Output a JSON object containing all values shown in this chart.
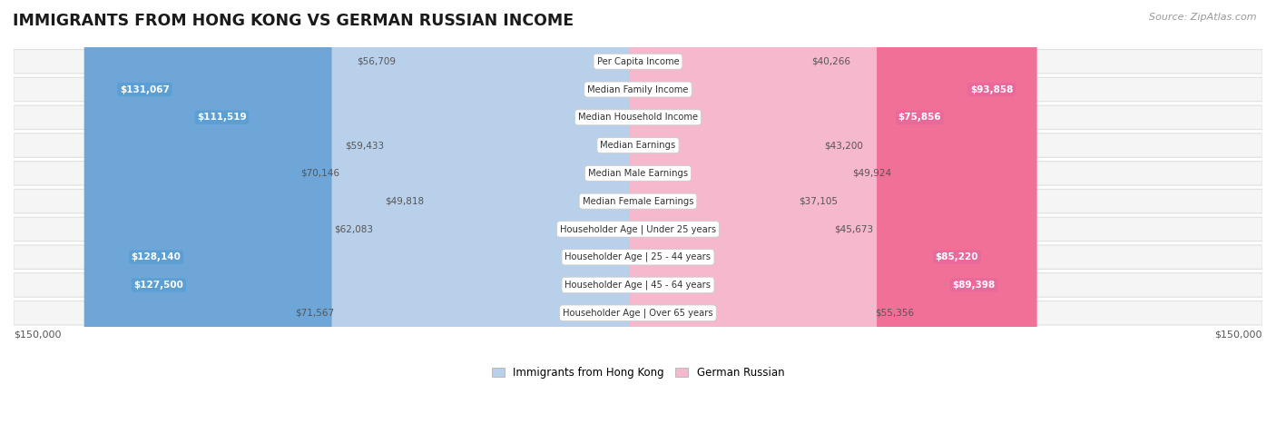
{
  "title": "IMMIGRANTS FROM HONG KONG VS GERMAN RUSSIAN INCOME",
  "source": "Source: ZipAtlas.com",
  "categories": [
    "Per Capita Income",
    "Median Family Income",
    "Median Household Income",
    "Median Earnings",
    "Median Male Earnings",
    "Median Female Earnings",
    "Householder Age | Under 25 years",
    "Householder Age | 25 - 44 years",
    "Householder Age | 45 - 64 years",
    "Householder Age | Over 65 years"
  ],
  "hk_values": [
    56709,
    131067,
    111519,
    59433,
    70146,
    49818,
    62083,
    128140,
    127500,
    71567
  ],
  "gr_values": [
    40266,
    93858,
    75856,
    43200,
    49924,
    37105,
    45673,
    85220,
    89398,
    55356
  ],
  "hk_labels": [
    "$56,709",
    "$131,067",
    "$111,519",
    "$59,433",
    "$70,146",
    "$49,818",
    "$62,083",
    "$128,140",
    "$127,500",
    "$71,567"
  ],
  "gr_labels": [
    "$40,266",
    "$93,858",
    "$75,856",
    "$43,200",
    "$49,924",
    "$37,105",
    "$45,673",
    "$85,220",
    "$89,398",
    "$55,356"
  ],
  "hk_color_light": "#b8d0ea",
  "hk_color_dark": "#6ea6d8",
  "gr_color_light": "#f5b8cc",
  "gr_color_dark": "#f07098",
  "hk_label_inside_bg": "#5b9fd4",
  "gr_label_inside_bg": "#e8699a",
  "max_value": 150000,
  "background_color": "#ffffff",
  "row_bg_color": "#f5f5f5",
  "row_border_color": "#e0e0e0",
  "label_inside_color": "#ffffff",
  "label_outside_color": "#555555",
  "hk_inside_threshold": 100000,
  "gr_inside_threshold": 75000
}
